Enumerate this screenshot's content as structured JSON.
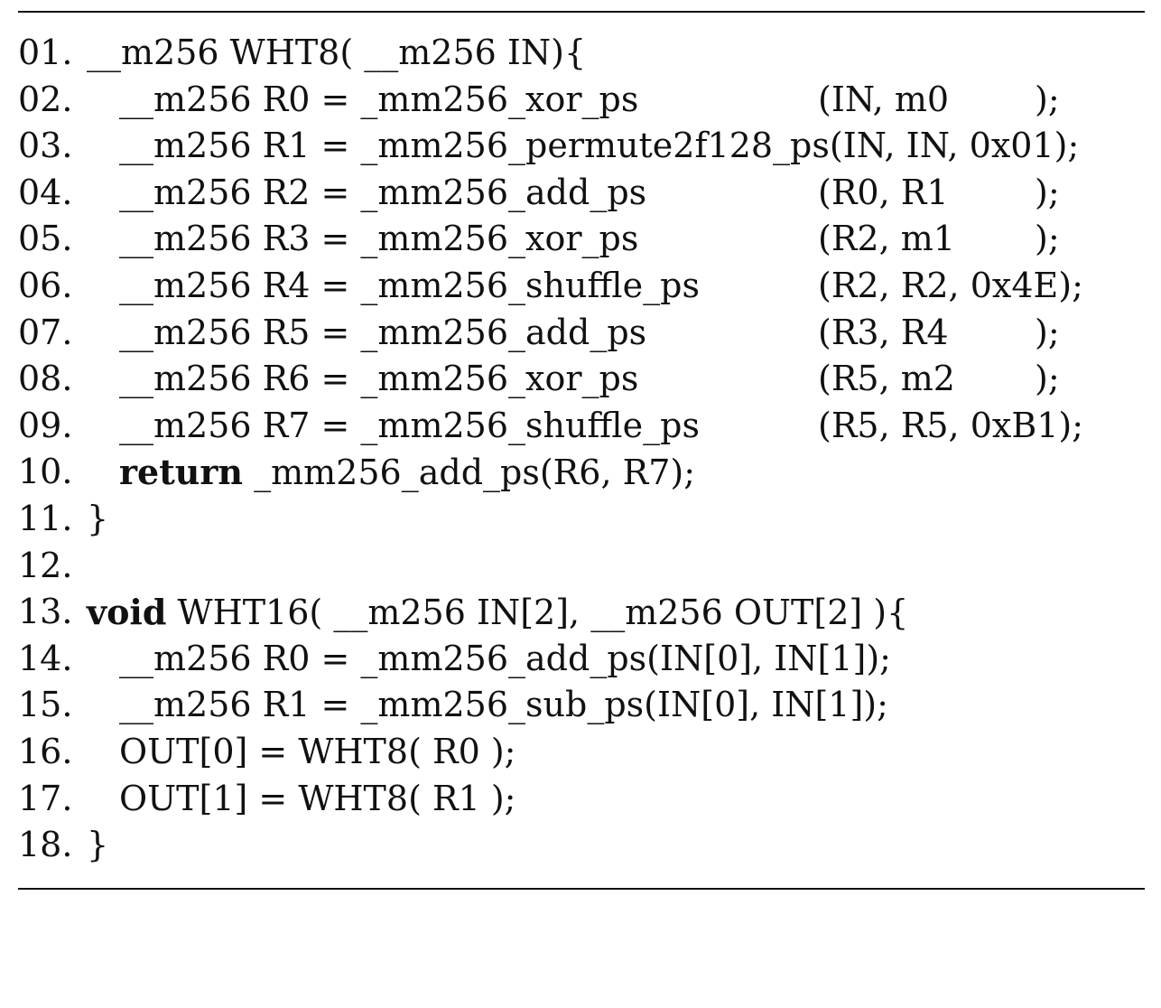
{
  "listing": {
    "lines": [
      {
        "num": "01.",
        "code": "__m256 WHT8( __m256 IN){"
      },
      {
        "num": "02.",
        "code": "__m256 R0 = _mm256_xor_ps",
        "args": "(IN, m0",
        "end": ");"
      },
      {
        "num": "03.",
        "code": "__m256 R1 = _mm256_permute2f128_ps(IN, IN, 0x01);"
      },
      {
        "num": "04.",
        "code": "__m256 R2 = _mm256_add_ps",
        "args": "(R0, R1",
        "end": ");"
      },
      {
        "num": "05.",
        "code": "__m256 R3 = _mm256_xor_ps",
        "args": "(R2, m1",
        "end": ");"
      },
      {
        "num": "06.",
        "code": "__m256 R4 = _mm256_shuffle_ps",
        "args": "(R2, R2, 0x4E);"
      },
      {
        "num": "07.",
        "code": "__m256 R5 = _mm256_add_ps",
        "args": "(R3, R4",
        "end": ");"
      },
      {
        "num": "08.",
        "code": "__m256 R6 = _mm256_xor_ps",
        "args": "(R5, m2",
        "end": ");"
      },
      {
        "num": "09.",
        "code": "__m256 R7 = _mm256_shuffle_ps",
        "args": "(R5, R5, 0xB1);"
      },
      {
        "num": "10.",
        "keyword": "return",
        "code": " _mm256_add_ps(R6, R7);"
      },
      {
        "num": "11.",
        "code": "}"
      },
      {
        "num": "12.",
        "code": ""
      },
      {
        "num": "13.",
        "keyword": "void",
        "code": " WHT16( __m256 IN[2], __m256 OUT[2] ){"
      },
      {
        "num": "14.",
        "code": "__m256 R0 = _mm256_add_ps(IN[0], IN[1]);"
      },
      {
        "num": "15.",
        "code": "__m256 R1 = _mm256_sub_ps(IN[0], IN[1]);"
      },
      {
        "num": "16.",
        "code": "OUT[0] = WHT8( R0 );"
      },
      {
        "num": "17.",
        "code": "OUT[1] = WHT8( R1 );"
      },
      {
        "num": "18.",
        "code": "}"
      }
    ]
  }
}
